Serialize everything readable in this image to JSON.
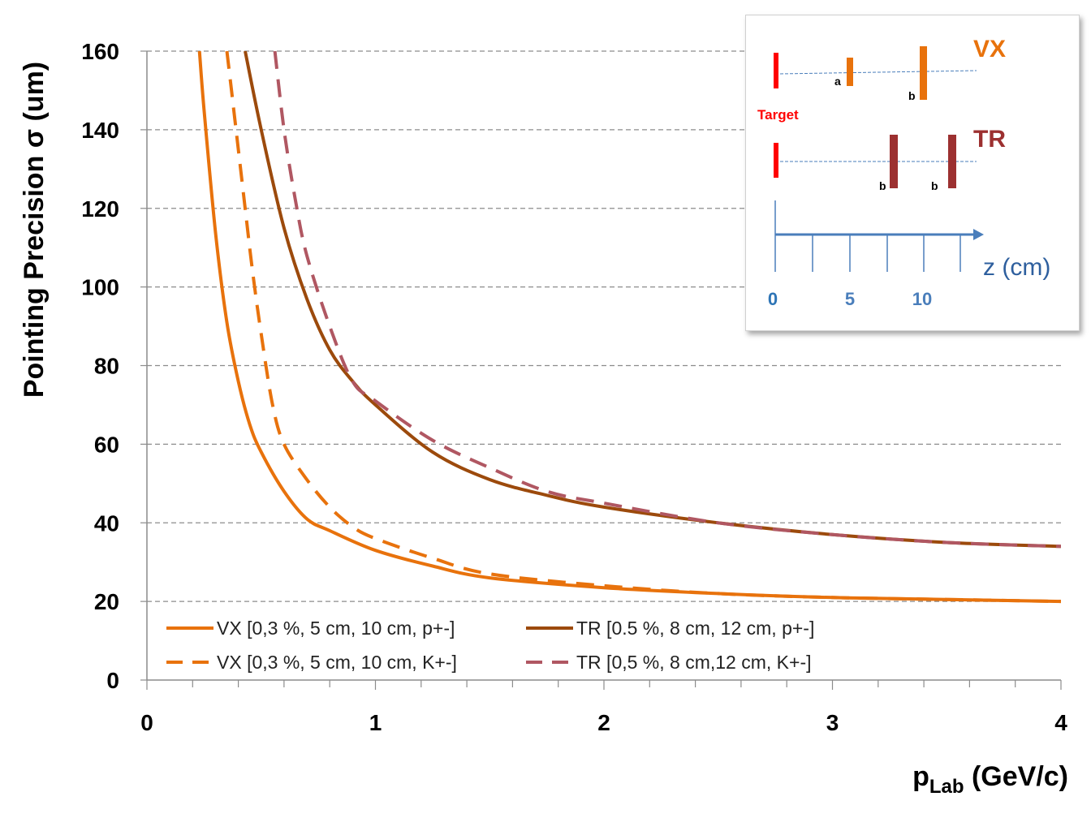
{
  "chart_data": {
    "type": "line",
    "title": "",
    "xlabel_main": "p",
    "xlabel_sub": "Lab",
    "xlabel_unit": " (GeV/c)",
    "ylabel": "Pointing Precision σ (um)",
    "xlim": [
      0,
      4
    ],
    "ylim": [
      0,
      160
    ],
    "xticks": [
      0,
      1,
      2,
      3,
      4
    ],
    "yticks": [
      0,
      20,
      40,
      60,
      80,
      100,
      120,
      140,
      160
    ],
    "grid": "horizontal dashed",
    "legend_position": "bottom-left",
    "series": [
      {
        "name": "VX [0,3 %, 5 cm, 10 cm, p+-]",
        "color": "#E8720C",
        "style": "solid",
        "x": [
          0.23,
          0.25,
          0.3,
          0.35,
          0.4,
          0.45,
          0.5,
          0.6,
          0.7,
          0.8,
          1.0,
          1.25,
          1.5,
          2.0,
          2.5,
          3.0,
          3.5,
          4.0
        ],
        "y": [
          160,
          145,
          114,
          91,
          76,
          65,
          58,
          48,
          41,
          38,
          33,
          29,
          26,
          23.5,
          22,
          21,
          20.5,
          20
        ]
      },
      {
        "name": "TR [0.5 %, 8 cm, 12 cm, p+-]",
        "color": "#9C4A0C",
        "style": "solid",
        "x": [
          0.43,
          0.5,
          0.6,
          0.7,
          0.8,
          0.9,
          1.0,
          1.25,
          1.5,
          1.75,
          2.0,
          2.5,
          3.0,
          3.5,
          4.0
        ],
        "y": [
          160,
          140,
          115,
          97,
          84,
          76,
          70,
          58,
          51,
          47,
          44,
          40,
          37,
          35,
          34
        ]
      },
      {
        "name": "VX [0,3 %, 5 cm, 10 cm, K+-]",
        "color": "#E8720C",
        "style": "dashed",
        "x": [
          0.35,
          0.37,
          0.4,
          0.43,
          0.46,
          0.5,
          0.55,
          0.6,
          0.7,
          0.8,
          0.9,
          1.0,
          1.25,
          1.5,
          2.0,
          2.5,
          3.0,
          3.5,
          4.0
        ],
        "y": [
          160,
          150,
          135,
          120,
          105,
          88,
          70,
          60,
          51,
          44,
          39,
          36,
          31,
          27,
          24,
          22,
          21,
          20.5,
          20
        ]
      },
      {
        "name": "TR [0,5 %, 8 cm,12 cm, K+-]",
        "color": "#B05762",
        "style": "dashed",
        "x": [
          0.56,
          0.6,
          0.65,
          0.7,
          0.8,
          0.9,
          1.0,
          1.25,
          1.5,
          1.75,
          2.0,
          2.5,
          3.0,
          3.5,
          4.0
        ],
        "y": [
          160,
          140,
          122,
          108,
          90,
          76,
          71,
          61,
          54,
          48,
          45,
          40,
          37,
          35,
          34
        ]
      }
    ]
  },
  "inset": {
    "vx_label": "VX",
    "tr_label": "TR",
    "target_label": "Target",
    "vx_layer_labels": [
      "a",
      "b"
    ],
    "tr_layer_labels": [
      "b",
      "b"
    ],
    "z_axis_ticks": [
      "0",
      "5",
      "10"
    ],
    "z_axis_label": "z (cm)",
    "colors": {
      "target": "#FF0000",
      "vx": "#E8720C",
      "tr": "#9C3030",
      "axis": "#4A7EBB",
      "axis_label_zero": "#2E75B6"
    }
  }
}
